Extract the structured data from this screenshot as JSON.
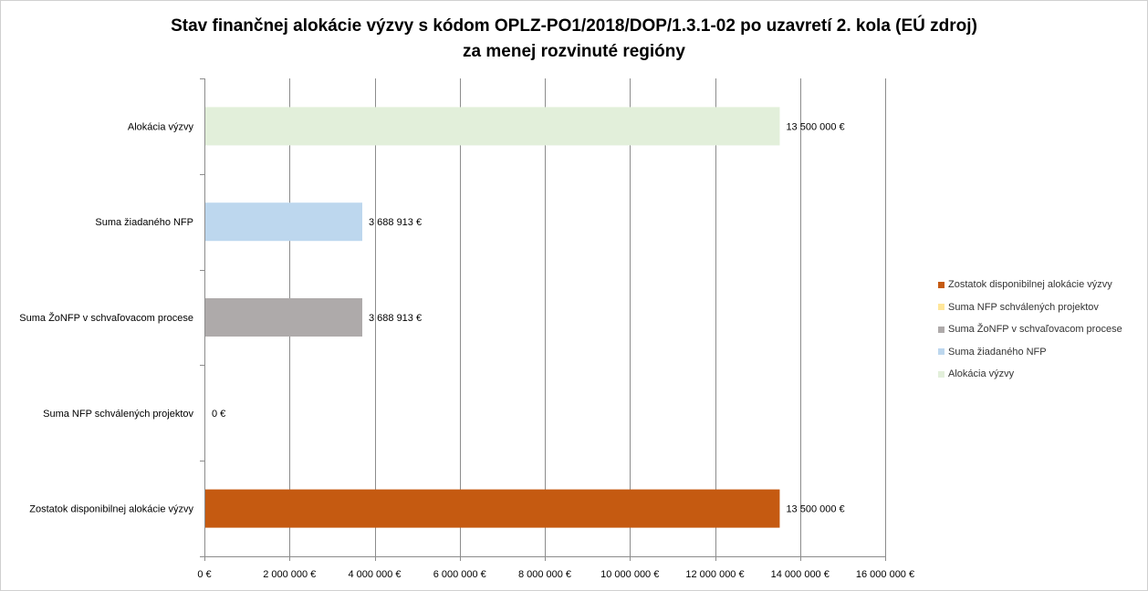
{
  "chart_data": {
    "type": "bar",
    "orientation": "horizontal",
    "title": "Stav finančnej alokácie výzvy s kódom OPLZ-PO1/2018/DOP/1.3.1-02 po uzavretí 2. kola (EÚ zdroj)",
    "subtitle": "za menej rozvinuté regióny",
    "categories": [
      "Alokácia výzvy",
      "Suma žiadaného NFP",
      "Suma ŽoNFP v schvaľovacom procese",
      "Suma NFP schválených projektov",
      "Zostatok disponibilnej alokácie výzvy"
    ],
    "values": [
      13500000,
      3688913,
      3688913,
      0,
      13500000
    ],
    "data_labels": [
      "13 500 000 €",
      "3 688 913 €",
      "3 688 913 €",
      "0 €",
      "13 500 000 €"
    ],
    "colors": [
      "#e2efda",
      "#bdd7ee",
      "#aeaaaa",
      "#ffe699",
      "#c55a11"
    ],
    "xlim": [
      0,
      16000000
    ],
    "x_ticks": [
      0,
      2000000,
      4000000,
      6000000,
      8000000,
      10000000,
      12000000,
      14000000,
      16000000
    ],
    "x_tick_labels": [
      "0 €",
      "2 000 000 €",
      "4 000 000 €",
      "6 000 000 €",
      "8 000 000 €",
      "10 000 000 €",
      "12 000 000 €",
      "14 000 000 €",
      "16 000 000 €"
    ],
    "grid": "vertical major gridlines",
    "legend_position": "right",
    "legend": [
      {
        "label": "Zostatok disponibilnej alokácie výzvy",
        "color": "#c55a11"
      },
      {
        "label": "Suma NFP schválených projektov",
        "color": "#ffe699"
      },
      {
        "label": "Suma ŽoNFP v schvaľovacom procese",
        "color": "#aeaaaa"
      },
      {
        "label": "Suma žiadaného NFP",
        "color": "#bdd7ee"
      },
      {
        "label": "Alokácia výzvy",
        "color": "#e2efda"
      }
    ]
  }
}
